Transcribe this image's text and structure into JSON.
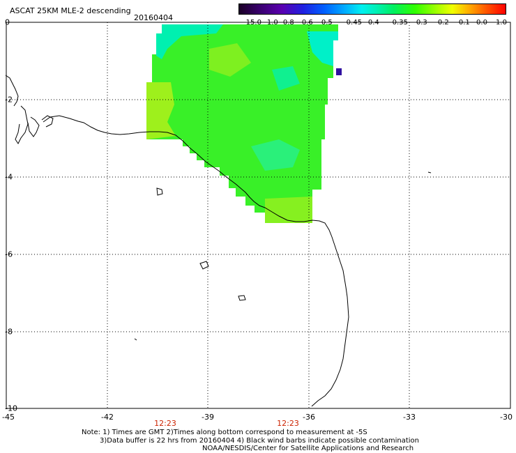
{
  "header": {
    "title": "ASCAT 25KM MLE-2 descending",
    "date": "20160404"
  },
  "colorbar": {
    "labels": [
      "-15.0",
      "-1.0",
      "-0.8",
      "-0.6",
      "-0.5",
      "-0.45",
      "-0.4",
      "-0.35",
      "-0.3",
      "-0.2",
      "-0.1",
      "0.0",
      "1.0"
    ]
  },
  "axes": {
    "x_ticks": [
      "-45",
      "-42",
      "-39",
      "-36",
      "-33",
      "-30"
    ],
    "y_ticks": [
      "0",
      "-2",
      "-4",
      "-6",
      "-8",
      "-10"
    ],
    "lon_range": [
      -45,
      -30
    ],
    "lat_range": [
      -10,
      0
    ]
  },
  "times": [
    "12:23",
    "12:23"
  ],
  "notes": {
    "line1": "Note: 1) Times are GMT 2)Times along bottom correspond to measurement at -5S",
    "line2": "3)Data buffer is 22 hrs from 20160404 4) Black wind barbs indicate possible contamination",
    "line3": "NOAA/NESDIS/Center for Satellite Applications and Research"
  },
  "colors": {
    "grid": "#000000",
    "coast": "#000000",
    "time_text": "#cc2200",
    "swath_green": "#39f028",
    "swath_cyan": "#00f0c8",
    "swath_yellowgreen": "#a6f01c",
    "swath_blue": "#3010a0"
  }
}
